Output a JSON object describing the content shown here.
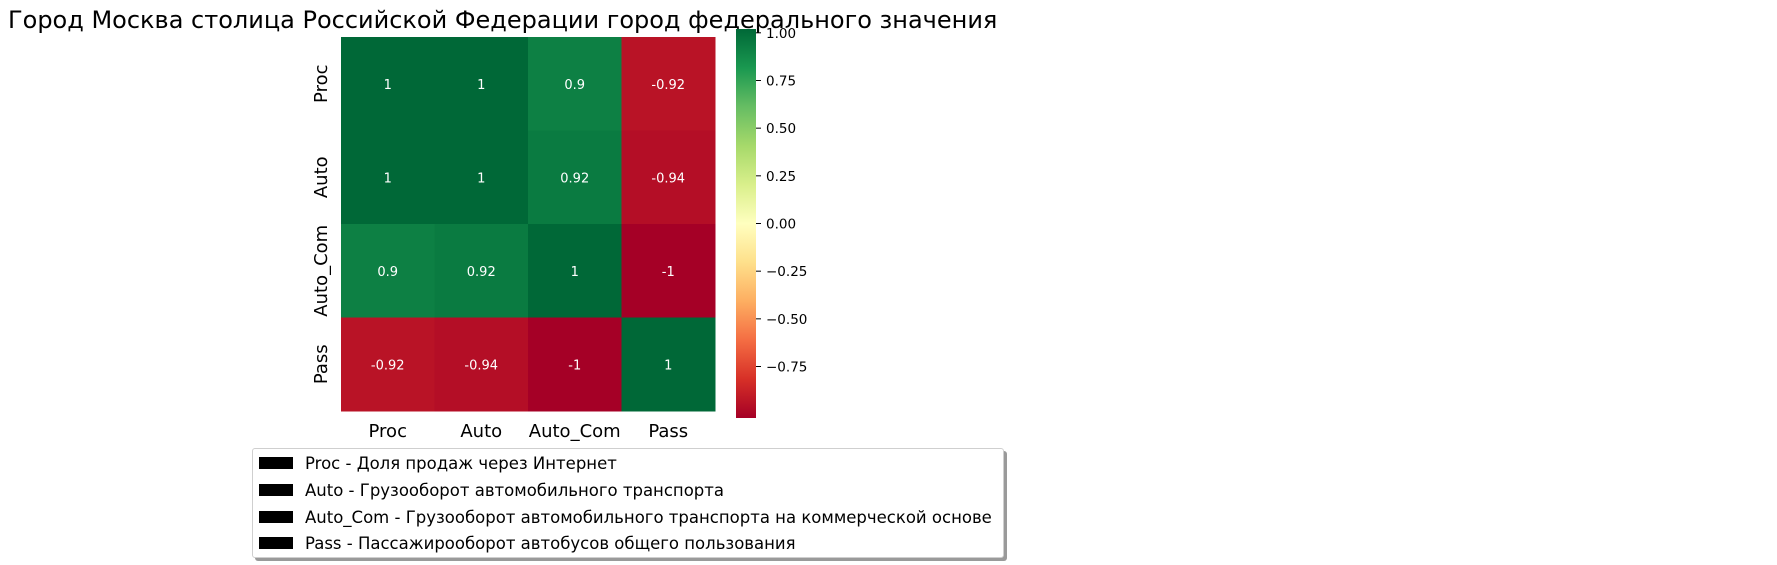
{
  "chart_data": {
    "type": "heatmap",
    "title": "Город Москва столица Российской Федерации город федерального значения",
    "categories": [
      "Proc",
      "Auto",
      "Auto_Com",
      "Pass"
    ],
    "matrix": [
      [
        1,
        1,
        0.9,
        -0.92
      ],
      [
        1,
        1,
        0.92,
        -0.94
      ],
      [
        0.9,
        0.92,
        1,
        -1
      ],
      [
        -0.92,
        -0.94,
        -1,
        1
      ]
    ],
    "annotations": [
      [
        "1",
        "1",
        "0.9",
        "-0.92"
      ],
      [
        "1",
        "1",
        "0.92",
        "-0.94"
      ],
      [
        "0.9",
        "0.92",
        "1",
        "-1"
      ],
      [
        "-0.92",
        "-0.94",
        "-1",
        "1"
      ]
    ],
    "colormap": "RdYlGn",
    "colorbar": {
      "ticks": [
        "1.00",
        "0.75",
        "0.50",
        "0.25",
        "0.00",
        "−0.25",
        "−0.50",
        "−0.75"
      ],
      "range": [
        -1,
        1
      ]
    },
    "legend": {
      "placement": "bottom",
      "items": [
        "Proc - Доля продаж через Интернет",
        "Auto - Грузооборот автомобильного транспорта",
        "Auto_Com - Грузооборот автомобильного транспорта на коммерческой основе",
        "Pass - Пассажирооборот автобусов общего пользования"
      ]
    }
  }
}
